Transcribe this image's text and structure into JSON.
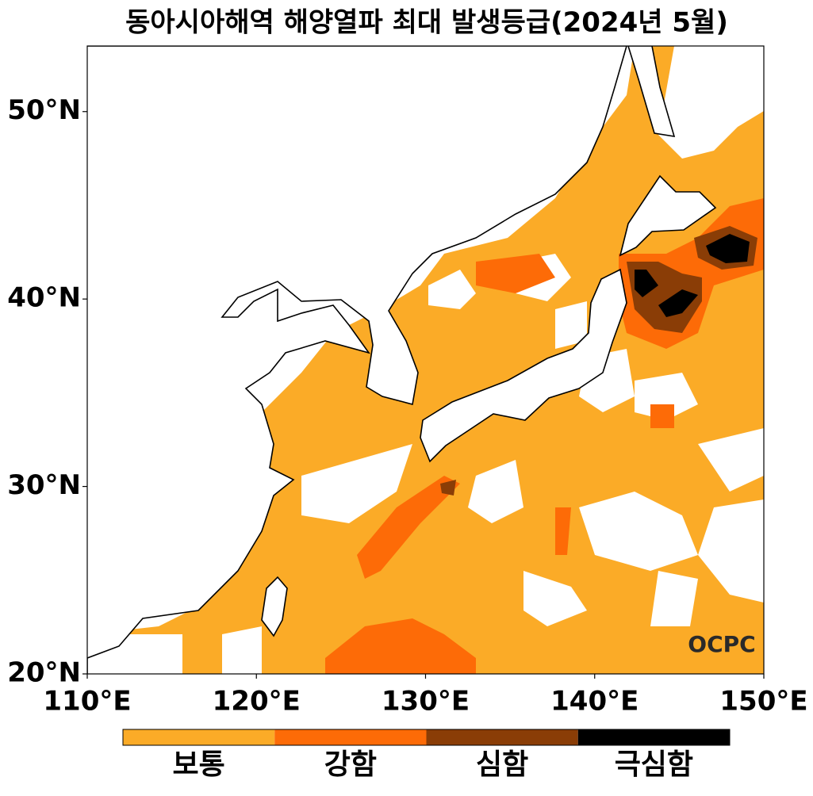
{
  "title": "동아시아해역 해양열파 최대 발생등급(2024년 5월)",
  "map": {
    "xlim": [
      110,
      150
    ],
    "ylim": [
      20,
      53.5
    ],
    "xticks": [
      {
        "value": 110,
        "label": "110°E"
      },
      {
        "value": 120,
        "label": "120°E"
      },
      {
        "value": 130,
        "label": "130°E"
      },
      {
        "value": 140,
        "label": "140°E"
      },
      {
        "value": 150,
        "label": "150°E"
      }
    ],
    "yticks": [
      {
        "value": 20,
        "label": "20°N"
      },
      {
        "value": 30,
        "label": "30°N"
      },
      {
        "value": 40,
        "label": "40°N"
      },
      {
        "value": 50,
        "label": "50°N"
      }
    ]
  },
  "legend": {
    "categories": [
      "보통",
      "강함",
      "심함",
      "극심함"
    ],
    "colors": [
      "#fbab27",
      "#fd6b07",
      "#8a3d06",
      "#000000"
    ]
  },
  "watermark": "OCPC"
}
